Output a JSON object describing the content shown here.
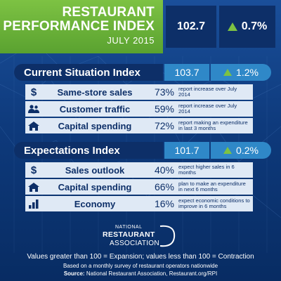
{
  "header": {
    "title_line1": "RESTAURANT",
    "title_line2": "PERFORMANCE INDEX",
    "date": "JULY 2015",
    "value": "102.7",
    "change": "0.7%"
  },
  "chart_data": {
    "type": "table",
    "title": "RESTAURANT PERFORMANCE INDEX",
    "subtitle": "JULY 2015",
    "index_value": 102.7,
    "index_change_pct": 0.7,
    "sections": [
      {
        "name": "Current Situation Index",
        "value": 103.7,
        "change_pct": 1.2,
        "rows": [
          {
            "label": "Same-store sales",
            "percent": 73,
            "description": "report increase over July 2014",
            "icon": "dollar-icon"
          },
          {
            "label": "Customer traffic",
            "percent": 59,
            "description": "report increase over July 2014",
            "icon": "people-icon"
          },
          {
            "label": "Capital spending",
            "percent": 72,
            "description": "report making an expenditure in last 3 months",
            "icon": "house-icon"
          }
        ]
      },
      {
        "name": "Expectations Index",
        "value": 101.7,
        "change_pct": 0.2,
        "rows": [
          {
            "label": "Sales outlook",
            "percent": 40,
            "description": "expect higher sales in 6 months",
            "icon": "dollar-icon"
          },
          {
            "label": "Capital spending",
            "percent": 66,
            "description": "plan to make an expenditure in next 6 months",
            "icon": "house-icon"
          },
          {
            "label": "Economy",
            "percent": 16,
            "description": "expect economic conditions to improve in 6 months",
            "icon": "bar-chart-icon"
          }
        ]
      }
    ]
  },
  "current": {
    "title": "Current Situation Index",
    "value": "103.7",
    "change": "1.2%",
    "rows": [
      {
        "icon_text": "$",
        "label": "Same-store sales",
        "pct": "73%",
        "desc": "report increase over July 2014"
      },
      {
        "icon_text": "",
        "label": "Customer traffic",
        "pct": "59%",
        "desc": "report increase over July 2014"
      },
      {
        "icon_text": "",
        "label": "Capital spending",
        "pct": "72%",
        "desc": "report making an expenditure in last 3 months"
      }
    ]
  },
  "expectations": {
    "title": "Expectations Index",
    "value": "101.7",
    "change": "0.2%",
    "rows": [
      {
        "icon_text": "$",
        "label": "Sales outlook",
        "pct": "40%",
        "desc": "expect higher sales in 6 months"
      },
      {
        "icon_text": "",
        "label": "Capital spending",
        "pct": "66%",
        "desc": "plan to make an expenditure in next 6 months"
      },
      {
        "icon_text": "",
        "label": "Economy",
        "pct": "16%",
        "desc": "expect economic conditions to improve in 6 months"
      }
    ]
  },
  "logo": {
    "line1": "NATIONAL",
    "line2": "RESTAURANT",
    "line3": "ASSOCIATION"
  },
  "footer": {
    "line1": "Values greater than 100 = Expansion; values less than 100 = Contraction",
    "line2": "Based on a monthly survey of restaurant operators nationwide",
    "source_label": "Source:",
    "source_text": "National Restaurant Association, Restaurant.org/RPI"
  },
  "colors": {
    "green": "#7dc243",
    "navy": "#0d2f68",
    "blue": "#2f88c8",
    "row_bg": "#dfe9f5"
  }
}
